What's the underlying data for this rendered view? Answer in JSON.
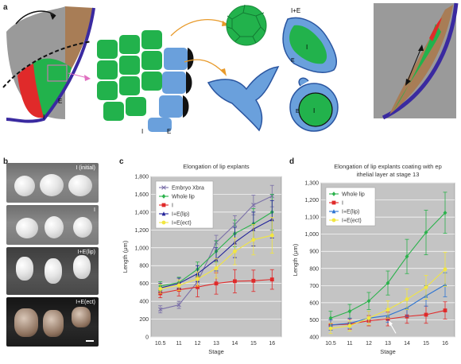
{
  "panel_letters": {
    "a": "a",
    "b": "b",
    "c": "c",
    "d": "d"
  },
  "schematic": {
    "label_I_top": "I+E",
    "label_I_left": "I",
    "label_E_left": "E",
    "label_I_mid": "I",
    "label_E_mid": "E",
    "label_I_blob": "I",
    "label_E_blob": "E",
    "label_I_ring": "I",
    "label_E_ring": "E"
  },
  "photos": {
    "row1": "I (initial)",
    "row2": "I",
    "row3": "I+E(lip)",
    "row4": "I+E(ect)"
  },
  "chart_data": [
    {
      "type": "line",
      "title": "Elongation of lip explants",
      "xlabel": "Stage",
      "ylabel": "Length (μm)",
      "categories": [
        "10.5",
        "11",
        "12",
        "13",
        "14",
        "15",
        "16"
      ],
      "ylim": [
        0,
        1800
      ],
      "yticks": [
        0,
        200,
        400,
        600,
        800,
        1000,
        1200,
        1400,
        1600,
        1800
      ],
      "ytick_labels": [
        "0",
        "200",
        "400",
        "600",
        "800",
        "1,000",
        "1,200",
        "1,400",
        "1,600",
        "1,800"
      ],
      "grid": true,
      "legend_position": "top-left",
      "series": [
        {
          "name": "Embryo Xbra",
          "color": "#7a6fa8",
          "marker": "x",
          "values": [
            310,
            360,
            620,
            1060,
            1260,
            1480,
            1580
          ],
          "err": [
            40,
            40,
            80,
            80,
            100,
            110,
            120
          ]
        },
        {
          "name": "Whole lip",
          "color": "#2bb24c",
          "marker": "diamond",
          "values": [
            570,
            610,
            760,
            960,
            1160,
            1270,
            1400
          ],
          "err": [
            50,
            60,
            80,
            120,
            150,
            170,
            200
          ]
        },
        {
          "name": "I",
          "color": "#e02a2a",
          "marker": "square",
          "values": [
            490,
            530,
            560,
            600,
            625,
            630,
            645
          ],
          "err": [
            50,
            70,
            110,
            120,
            130,
            120,
            110
          ]
        },
        {
          "name": "I+E(lip)",
          "color": "#23239a",
          "marker": "triangle",
          "values": [
            550,
            600,
            710,
            870,
            1060,
            1210,
            1320
          ],
          "err": [
            50,
            60,
            90,
            130,
            170,
            190,
            210
          ]
        },
        {
          "name": "I+E(ect)",
          "color": "#f2e640",
          "marker": "circle",
          "values": [
            540,
            580,
            650,
            770,
            960,
            1090,
            1140
          ],
          "err": [
            50,
            60,
            80,
            110,
            150,
            170,
            200
          ]
        }
      ]
    },
    {
      "type": "line",
      "title": "Elongation of lip explants coating with epithelial layer at stage 13",
      "xlabel": "Stage",
      "ylabel": "Length (μm)",
      "categories": [
        "10.5",
        "11",
        "12",
        "13",
        "14",
        "15",
        "16"
      ],
      "ylim": [
        400,
        1300
      ],
      "yticks": [
        400,
        500,
        600,
        700,
        800,
        900,
        1000,
        1100,
        1200,
        1300
      ],
      "ytick_labels": [
        "400",
        "500",
        "600",
        "700",
        "800",
        "900",
        "1,000",
        "1,100",
        "1,200",
        "1,300"
      ],
      "grid": true,
      "legend_position": "top-left",
      "series": [
        {
          "name": "Whole lip",
          "color": "#2bb24c",
          "marker": "diamond",
          "values": [
            510,
            550,
            610,
            715,
            870,
            1010,
            1125
          ],
          "err": [
            40,
            40,
            50,
            70,
            100,
            130,
            120
          ]
        },
        {
          "name": "I",
          "color": "#e02a2a",
          "marker": "square",
          "values": [
            470,
            475,
            495,
            505,
            520,
            530,
            555
          ],
          "err": [
            30,
            30,
            30,
            40,
            40,
            50,
            50
          ]
        },
        {
          "name": "I+E(lip)",
          "color": "#2c73d2",
          "marker": "triangle",
          "values": [
            470,
            480,
            510,
            525,
            570,
            640,
            705
          ],
          "err": [
            30,
            30,
            40,
            40,
            50,
            60,
            70
          ]
        },
        {
          "name": "I+E(ect)",
          "color": "#f2e640",
          "marker": "circle",
          "values": [
            450,
            465,
            510,
            560,
            620,
            690,
            795
          ],
          "err": [
            30,
            30,
            40,
            50,
            60,
            70,
            100
          ]
        }
      ]
    }
  ]
}
